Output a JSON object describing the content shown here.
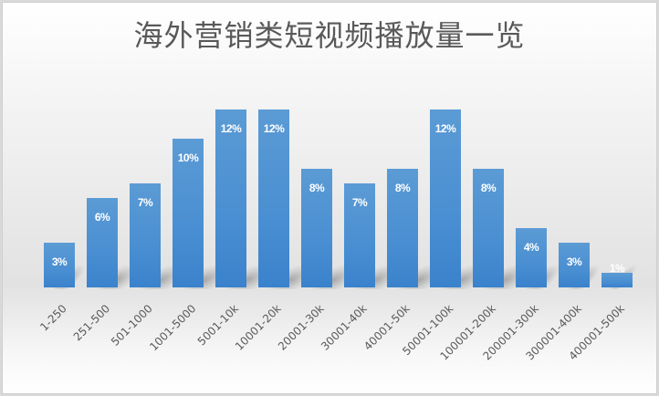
{
  "chart_data": {
    "type": "bar",
    "title": "海外营销类短视频播放量一览",
    "xlabel": "",
    "ylabel": "",
    "categories": [
      "1-250",
      "251-500",
      "501-1000",
      "1001-5000",
      "5001-10k",
      "10001-20k",
      "20001-30k",
      "30001-40k",
      "40001-50k",
      "50001-100k",
      "100001-200k",
      "200001-300k",
      "300001-400k",
      "400001-500k"
    ],
    "values": [
      3,
      6,
      7,
      10,
      12,
      12,
      8,
      7,
      8,
      12,
      8,
      4,
      3,
      1
    ],
    "value_labels": [
      "3%",
      "6%",
      "7%",
      "10%",
      "12%",
      "12%",
      "8%",
      "7%",
      "8%",
      "12%",
      "8%",
      "4%",
      "3%",
      "1%"
    ],
    "unit": "%",
    "ylim": [
      0,
      12
    ],
    "grid": false,
    "legend": "none",
    "y_axis_visible": false,
    "bar_color": "#4a8fd2",
    "label_color": "#ffffff",
    "tick_rotation": -45
  }
}
